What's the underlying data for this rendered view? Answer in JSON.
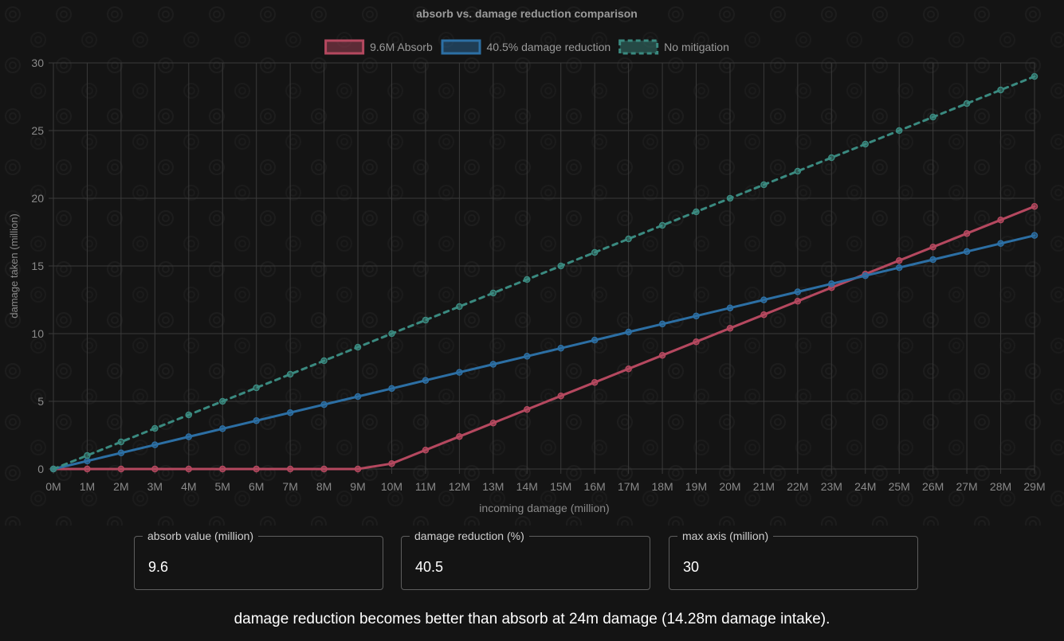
{
  "chart_data": {
    "type": "line",
    "title": "absorb vs. damage reduction comparison",
    "xlabel": "incoming damage (million)",
    "ylabel": "damage taken (million)",
    "x": [
      0,
      1,
      2,
      3,
      4,
      5,
      6,
      7,
      8,
      9,
      10,
      11,
      12,
      13,
      14,
      15,
      16,
      17,
      18,
      19,
      20,
      21,
      22,
      23,
      24,
      25,
      26,
      27,
      28,
      29
    ],
    "x_tick_labels": [
      "0M",
      "1M",
      "2M",
      "3M",
      "4M",
      "5M",
      "6M",
      "7M",
      "8M",
      "9M",
      "10M",
      "11M",
      "12M",
      "13M",
      "14M",
      "15M",
      "16M",
      "17M",
      "18M",
      "19M",
      "20M",
      "21M",
      "22M",
      "23M",
      "24M",
      "25M",
      "26M",
      "27M",
      "28M",
      "29M"
    ],
    "ylim": [
      0,
      30
    ],
    "y_ticks": [
      0,
      5,
      10,
      15,
      20,
      25,
      30
    ],
    "grid": true,
    "legend_position": "top-center",
    "series": [
      {
        "name": "9.6M Absorb",
        "color": "#b5485f",
        "dashed": false,
        "values": [
          0,
          0,
          0,
          0,
          0,
          0,
          0,
          0,
          0,
          0,
          0.4,
          1.4,
          2.4,
          3.4,
          4.4,
          5.4,
          6.4,
          7.4,
          8.4,
          9.4,
          10.4,
          11.4,
          12.4,
          13.4,
          14.4,
          15.4,
          16.4,
          17.4,
          18.4,
          19.4
        ]
      },
      {
        "name": "40.5% damage reduction",
        "color": "#2c6fa4",
        "dashed": false,
        "values": [
          0,
          0.595,
          1.19,
          1.785,
          2.38,
          2.975,
          3.57,
          4.165,
          4.76,
          5.355,
          5.95,
          6.545,
          7.14,
          7.735,
          8.33,
          8.925,
          9.52,
          10.115,
          10.71,
          11.305,
          11.9,
          12.495,
          13.09,
          13.685,
          14.28,
          14.875,
          15.47,
          16.065,
          16.66,
          17.255
        ]
      },
      {
        "name": "No mitigation",
        "color": "#3a8a80",
        "dashed": true,
        "values": [
          0,
          1,
          2,
          3,
          4,
          5,
          6,
          7,
          8,
          9,
          10,
          11,
          12,
          13,
          14,
          15,
          16,
          17,
          18,
          19,
          20,
          21,
          22,
          23,
          24,
          25,
          26,
          27,
          28,
          29
        ]
      }
    ]
  },
  "controls": {
    "absorb": {
      "label": "absorb value (million)",
      "value": "9.6"
    },
    "reduction": {
      "label": "damage reduction (%)",
      "value": "40.5"
    },
    "max_axis": {
      "label": "max axis (million)",
      "value": "30"
    }
  },
  "result": {
    "text": "damage reduction becomes better than absorb at 24m damage (14.28m damage intake)."
  }
}
